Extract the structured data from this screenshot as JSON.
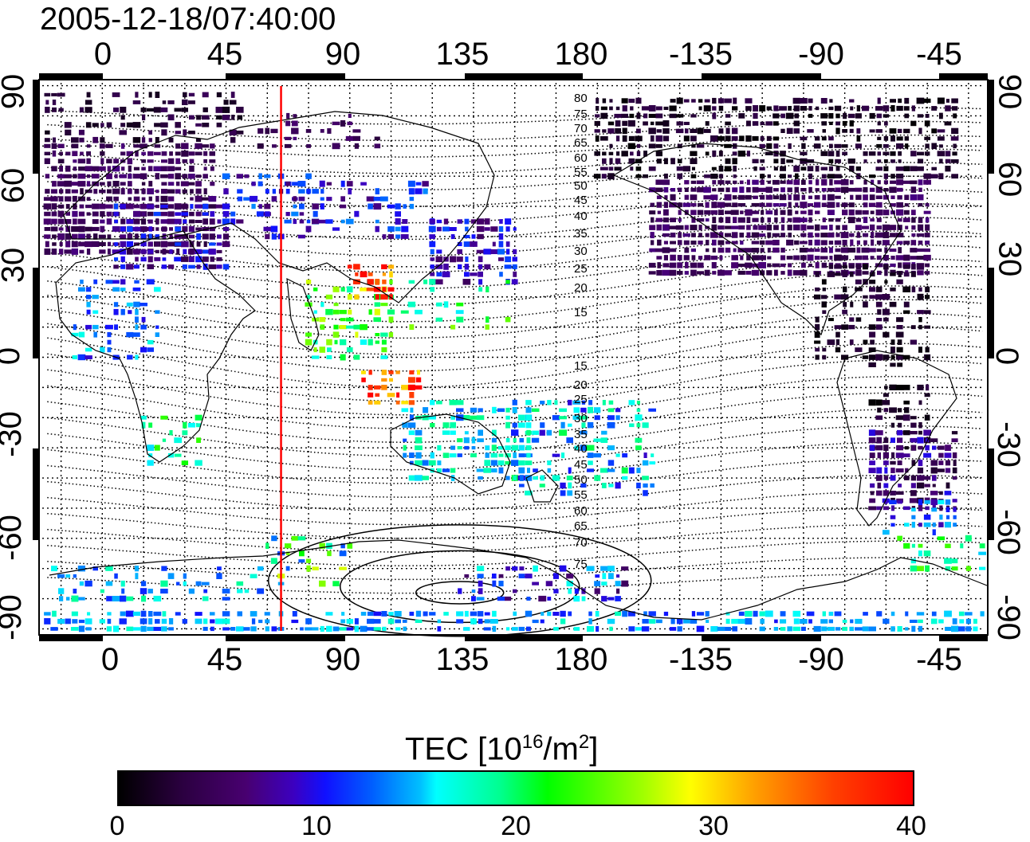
{
  "title": "2005-12-18/07:40:00",
  "x_ticks": [
    "0",
    "45",
    "90",
    "135",
    "180",
    "-135",
    "-90",
    "-45"
  ],
  "y_ticks": [
    "90",
    "60",
    "30",
    "0",
    "-30",
    "-60",
    "-90"
  ],
  "contour_labels": [
    "80",
    "75",
    "70",
    "65",
    "60",
    "55",
    "50",
    "45",
    "40",
    "35",
    "30",
    "25",
    "20",
    "15",
    "15",
    "20",
    "25",
    "30",
    "35",
    "40",
    "45",
    "50",
    "55",
    "60",
    "65",
    "70",
    "75"
  ],
  "colorbar": {
    "title_prefix": "TEC  [10",
    "title_sup1": "16",
    "title_mid": "/m",
    "title_sup2": "2",
    "title_suffix": "]",
    "ticks": [
      "0",
      "10",
      "20",
      "30",
      "40"
    ],
    "min": 0,
    "max": 40
  },
  "colors": {
    "frame": "#000000",
    "meridian_marker": "#ff0000",
    "grid": "#000000",
    "coast": "#000000"
  },
  "map_data": {
    "projection": "equirectangular",
    "lon_range": [
      -23,
      322
    ],
    "lat_range": [
      -92,
      92
    ],
    "marker_longitude": 65,
    "quantity": "TEC",
    "value_range": [
      0,
      40
    ]
  }
}
